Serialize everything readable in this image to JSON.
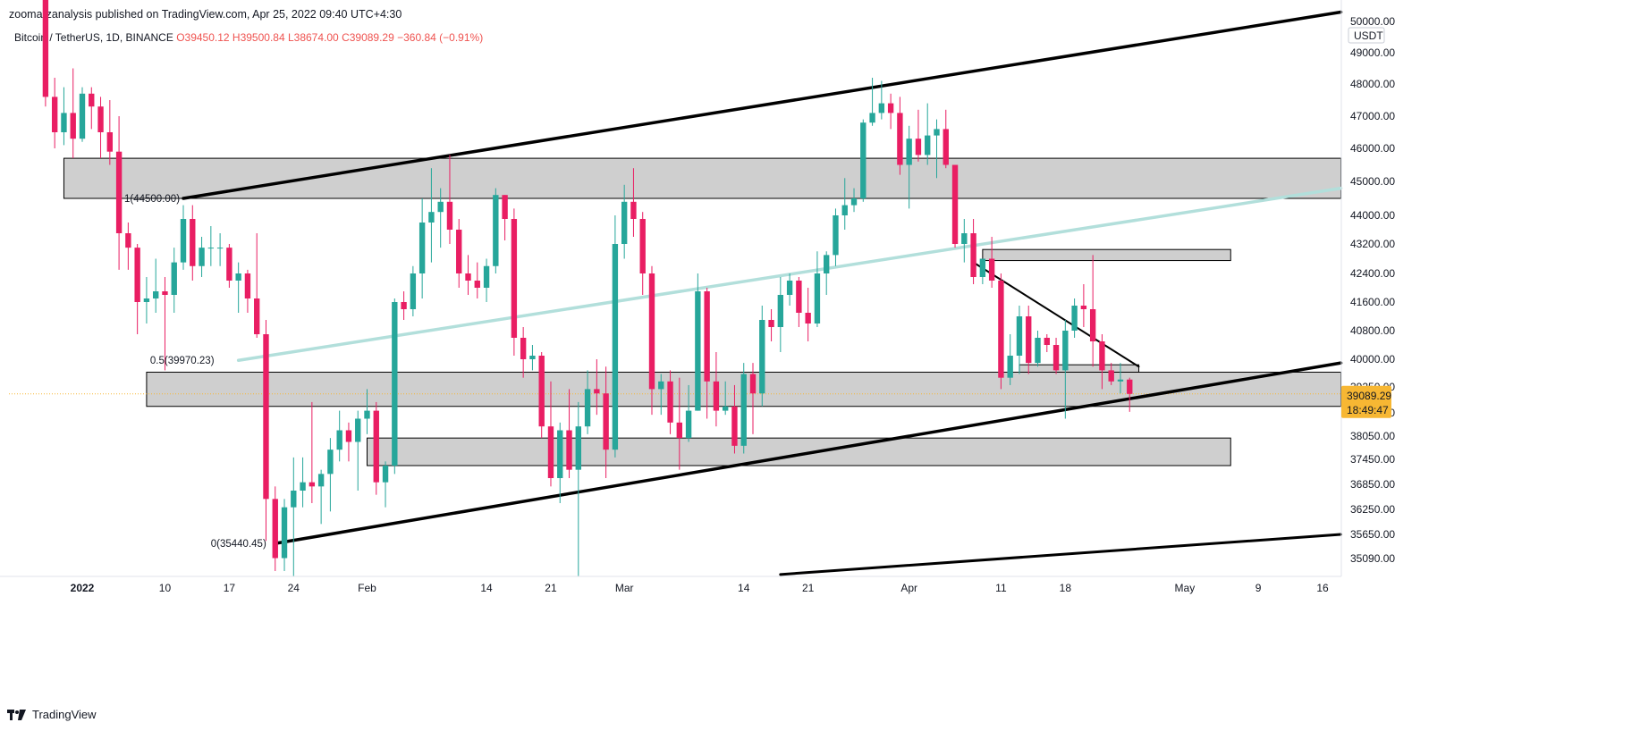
{
  "header": {
    "published_line": "zoomarzanalysis published on TradingView.com, Apr 25, 2022 09:40 UTC+4:30",
    "symbol_line": "Bitcoin / TetherUS, 1D, BINANCE",
    "ohlc": {
      "open": "O39450.12",
      "high": "H39500.84",
      "low": "L38674.00",
      "close": "C39089.29",
      "change": "−360.84 (−0.91%)"
    }
  },
  "footer": {
    "brand": "TradingView"
  },
  "colors": {
    "up": "#26a69a",
    "down": "#e91e63",
    "zone_fill": "#cfcfcf",
    "trend": "#000000",
    "fib": "#b2dfdb",
    "price_tag": "#f7b733"
  },
  "chart_data": {
    "type": "candlestick",
    "title": "Bitcoin / TetherUS, 1D, BINANCE",
    "currency": "USDT",
    "ylim": [
      34700,
      50000
    ],
    "y_ticks": [
      49000,
      48000,
      47000,
      46000,
      45000,
      44000,
      43200,
      42400,
      41600,
      40800,
      40000,
      39250,
      38650,
      38050,
      37450,
      36850,
      36250,
      35650,
      35090
    ],
    "y_tick_labels": [
      "49000.00",
      "48000.00",
      "47000.00",
      "46000.00",
      "45000.00",
      "44000.00",
      "43200.00",
      "42400.00",
      "41600.00",
      "40800.00",
      "40000.00",
      "39250.00",
      "38650.00",
      "38050.00",
      "37450.00",
      "36850.00",
      "36250.00",
      "35650.00",
      "35090.00"
    ],
    "top_tick_label": "50000.00",
    "x_range": [
      "2021-12-27",
      "2022-05-18"
    ],
    "x_ticks": [
      {
        "date": "2022-01-01",
        "label": "2022",
        "bold": true
      },
      {
        "date": "2022-01-10",
        "label": "10"
      },
      {
        "date": "2022-01-17",
        "label": "17"
      },
      {
        "date": "2022-01-24",
        "label": "24"
      },
      {
        "date": "2022-02-01",
        "label": "Feb"
      },
      {
        "date": "2022-02-14",
        "label": "14"
      },
      {
        "date": "2022-02-21",
        "label": "21"
      },
      {
        "date": "2022-03-01",
        "label": "Mar"
      },
      {
        "date": "2022-03-14",
        "label": "14"
      },
      {
        "date": "2022-03-21",
        "label": "21"
      },
      {
        "date": "2022-04-01",
        "label": "Apr"
      },
      {
        "date": "2022-04-11",
        "label": "11"
      },
      {
        "date": "2022-04-18",
        "label": "18"
      },
      {
        "date": "2022-05-01",
        "label": "May"
      },
      {
        "date": "2022-05-09",
        "label": "9"
      },
      {
        "date": "2022-05-16",
        "label": "16"
      }
    ],
    "last_price": {
      "value": 39089.29,
      "label": "39089.29",
      "countdown": "18:49:47"
    },
    "candles": [
      {
        "d": "2021-12-28",
        "o": 50800,
        "h": 51000,
        "l": 47300,
        "c": 47600
      },
      {
        "d": "2021-12-29",
        "o": 47600,
        "h": 48200,
        "l": 46000,
        "c": 46500
      },
      {
        "d": "2021-12-30",
        "o": 46500,
        "h": 47900,
        "l": 46100,
        "c": 47100
      },
      {
        "d": "2021-12-31",
        "o": 47100,
        "h": 48500,
        "l": 45700,
        "c": 46300
      },
      {
        "d": "2022-01-01",
        "o": 46300,
        "h": 47900,
        "l": 46200,
        "c": 47700
      },
      {
        "d": "2022-01-02",
        "o": 47700,
        "h": 47900,
        "l": 46600,
        "c": 47300
      },
      {
        "d": "2022-01-03",
        "o": 47300,
        "h": 47600,
        "l": 45700,
        "c": 46500
      },
      {
        "d": "2022-01-04",
        "o": 46500,
        "h": 47500,
        "l": 45500,
        "c": 45900
      },
      {
        "d": "2022-01-05",
        "o": 45900,
        "h": 47000,
        "l": 42500,
        "c": 43500
      },
      {
        "d": "2022-01-06",
        "o": 43500,
        "h": 43800,
        "l": 42500,
        "c": 43100
      },
      {
        "d": "2022-01-07",
        "o": 43100,
        "h": 43200,
        "l": 40700,
        "c": 41600
      },
      {
        "d": "2022-01-08",
        "o": 41600,
        "h": 42300,
        "l": 41000,
        "c": 41700
      },
      {
        "d": "2022-01-09",
        "o": 41700,
        "h": 42800,
        "l": 41300,
        "c": 41900
      },
      {
        "d": "2022-01-10",
        "o": 41900,
        "h": 42300,
        "l": 39700,
        "c": 41800
      },
      {
        "d": "2022-01-11",
        "o": 41800,
        "h": 43100,
        "l": 41300,
        "c": 42700
      },
      {
        "d": "2022-01-12",
        "o": 42700,
        "h": 44300,
        "l": 42500,
        "c": 43900
      },
      {
        "d": "2022-01-13",
        "o": 43900,
        "h": 44300,
        "l": 42200,
        "c": 42600
      },
      {
        "d": "2022-01-14",
        "o": 42600,
        "h": 43400,
        "l": 42300,
        "c": 43100
      },
      {
        "d": "2022-01-15",
        "o": 43100,
        "h": 43700,
        "l": 42600,
        "c": 43100
      },
      {
        "d": "2022-01-16",
        "o": 43100,
        "h": 43500,
        "l": 42600,
        "c": 43100
      },
      {
        "d": "2022-01-17",
        "o": 43100,
        "h": 43200,
        "l": 42000,
        "c": 42200
      },
      {
        "d": "2022-01-18",
        "o": 42200,
        "h": 42700,
        "l": 41300,
        "c": 42400
      },
      {
        "d": "2022-01-19",
        "o": 42400,
        "h": 42500,
        "l": 41300,
        "c": 41700
      },
      {
        "d": "2022-01-20",
        "o": 41700,
        "h": 43500,
        "l": 40600,
        "c": 40700
      },
      {
        "d": "2022-01-21",
        "o": 40700,
        "h": 41100,
        "l": 35500,
        "c": 36500
      },
      {
        "d": "2022-01-22",
        "o": 36500,
        "h": 36800,
        "l": 34800,
        "c": 35100
      },
      {
        "d": "2022-01-23",
        "o": 35100,
        "h": 36500,
        "l": 34800,
        "c": 36300
      },
      {
        "d": "2022-01-24",
        "o": 36300,
        "h": 37500,
        "l": 33000,
        "c": 36700
      },
      {
        "d": "2022-01-25",
        "o": 36700,
        "h": 37500,
        "l": 36300,
        "c": 36900
      },
      {
        "d": "2022-01-26",
        "o": 36900,
        "h": 38900,
        "l": 36400,
        "c": 36800
      },
      {
        "d": "2022-01-27",
        "o": 36800,
        "h": 37200,
        "l": 35900,
        "c": 37100
      },
      {
        "d": "2022-01-28",
        "o": 37100,
        "h": 38000,
        "l": 36200,
        "c": 37700
      },
      {
        "d": "2022-01-29",
        "o": 37700,
        "h": 38700,
        "l": 37400,
        "c": 38200
      },
      {
        "d": "2022-01-30",
        "o": 38200,
        "h": 38400,
        "l": 37400,
        "c": 37900
      },
      {
        "d": "2022-01-31",
        "o": 37900,
        "h": 38700,
        "l": 36700,
        "c": 38500
      },
      {
        "d": "2022-02-01",
        "o": 38500,
        "h": 39200,
        "l": 38100,
        "c": 38700
      },
      {
        "d": "2022-02-02",
        "o": 38700,
        "h": 38900,
        "l": 36600,
        "c": 36900
      },
      {
        "d": "2022-02-03",
        "o": 36900,
        "h": 37400,
        "l": 36300,
        "c": 37300
      },
      {
        "d": "2022-02-04",
        "o": 37300,
        "h": 41700,
        "l": 37100,
        "c": 41600
      },
      {
        "d": "2022-02-05",
        "o": 41600,
        "h": 41900,
        "l": 41100,
        "c": 41400
      },
      {
        "d": "2022-02-06",
        "o": 41400,
        "h": 42600,
        "l": 41200,
        "c": 42400
      },
      {
        "d": "2022-02-07",
        "o": 42400,
        "h": 44500,
        "l": 41700,
        "c": 43800
      },
      {
        "d": "2022-02-08",
        "o": 43800,
        "h": 45400,
        "l": 42700,
        "c": 44100
      },
      {
        "d": "2022-02-09",
        "o": 44100,
        "h": 44800,
        "l": 43100,
        "c": 44400
      },
      {
        "d": "2022-02-10",
        "o": 44400,
        "h": 45800,
        "l": 43200,
        "c": 43600
      },
      {
        "d": "2022-02-11",
        "o": 43600,
        "h": 43900,
        "l": 42000,
        "c": 42400
      },
      {
        "d": "2022-02-12",
        "o": 42400,
        "h": 42900,
        "l": 41800,
        "c": 42200
      },
      {
        "d": "2022-02-13",
        "o": 42200,
        "h": 42700,
        "l": 41700,
        "c": 42000
      },
      {
        "d": "2022-02-14",
        "o": 42000,
        "h": 42800,
        "l": 41600,
        "c": 42600
      },
      {
        "d": "2022-02-15",
        "o": 42600,
        "h": 44800,
        "l": 42400,
        "c": 44600
      },
      {
        "d": "2022-02-16",
        "o": 44600,
        "h": 44600,
        "l": 43300,
        "c": 43900
      },
      {
        "d": "2022-02-17",
        "o": 43900,
        "h": 44200,
        "l": 40100,
        "c": 40600
      },
      {
        "d": "2022-02-18",
        "o": 40600,
        "h": 40900,
        "l": 39500,
        "c": 40000
      },
      {
        "d": "2022-02-19",
        "o": 40000,
        "h": 40400,
        "l": 39700,
        "c": 40100
      },
      {
        "d": "2022-02-20",
        "o": 40100,
        "h": 40200,
        "l": 38000,
        "c": 38300
      },
      {
        "d": "2022-02-21",
        "o": 38300,
        "h": 39400,
        "l": 36800,
        "c": 37000
      },
      {
        "d": "2022-02-22",
        "o": 37000,
        "h": 38400,
        "l": 36400,
        "c": 38200
      },
      {
        "d": "2022-02-23",
        "o": 38200,
        "h": 39200,
        "l": 37000,
        "c": 37200
      },
      {
        "d": "2022-02-24",
        "o": 37200,
        "h": 38900,
        "l": 34400,
        "c": 38300
      },
      {
        "d": "2022-02-25",
        "o": 38300,
        "h": 39700,
        "l": 38100,
        "c": 39200
      },
      {
        "d": "2022-02-26",
        "o": 39200,
        "h": 40000,
        "l": 38600,
        "c": 39100
      },
      {
        "d": "2022-02-27",
        "o": 39100,
        "h": 39800,
        "l": 37000,
        "c": 37700
      },
      {
        "d": "2022-02-28",
        "o": 37700,
        "h": 44000,
        "l": 37500,
        "c": 43200
      },
      {
        "d": "2022-03-01",
        "o": 43200,
        "h": 44900,
        "l": 42800,
        "c": 44400
      },
      {
        "d": "2022-03-02",
        "o": 44400,
        "h": 45400,
        "l": 43400,
        "c": 43900
      },
      {
        "d": "2022-03-03",
        "o": 43900,
        "h": 44100,
        "l": 41800,
        "c": 42400
      },
      {
        "d": "2022-03-04",
        "o": 42400,
        "h": 42600,
        "l": 38600,
        "c": 39200
      },
      {
        "d": "2022-03-05",
        "o": 39200,
        "h": 39600,
        "l": 38600,
        "c": 39400
      },
      {
        "d": "2022-03-06",
        "o": 39400,
        "h": 39700,
        "l": 38100,
        "c": 38400
      },
      {
        "d": "2022-03-07",
        "o": 38400,
        "h": 39500,
        "l": 37200,
        "c": 38000
      },
      {
        "d": "2022-03-08",
        "o": 38000,
        "h": 39300,
        "l": 37900,
        "c": 38700
      },
      {
        "d": "2022-03-09",
        "o": 38700,
        "h": 42400,
        "l": 38700,
        "c": 41900
      },
      {
        "d": "2022-03-10",
        "o": 41900,
        "h": 42000,
        "l": 38500,
        "c": 39400
      },
      {
        "d": "2022-03-11",
        "o": 39400,
        "h": 40200,
        "l": 38300,
        "c": 38700
      },
      {
        "d": "2022-03-12",
        "o": 38700,
        "h": 39400,
        "l": 38600,
        "c": 38800
      },
      {
        "d": "2022-03-13",
        "o": 38800,
        "h": 39300,
        "l": 37600,
        "c": 37800
      },
      {
        "d": "2022-03-14",
        "o": 37800,
        "h": 39900,
        "l": 37600,
        "c": 39600
      },
      {
        "d": "2022-03-15",
        "o": 39600,
        "h": 39900,
        "l": 38100,
        "c": 39100
      },
      {
        "d": "2022-03-16",
        "o": 39100,
        "h": 41500,
        "l": 38800,
        "c": 41100
      },
      {
        "d": "2022-03-17",
        "o": 41100,
        "h": 41400,
        "l": 40500,
        "c": 40900
      },
      {
        "d": "2022-03-18",
        "o": 40900,
        "h": 42300,
        "l": 40200,
        "c": 41800
      },
      {
        "d": "2022-03-19",
        "o": 41800,
        "h": 42400,
        "l": 41500,
        "c": 42200
      },
      {
        "d": "2022-03-20",
        "o": 42200,
        "h": 42300,
        "l": 40900,
        "c": 41300
      },
      {
        "d": "2022-03-21",
        "o": 41300,
        "h": 42000,
        "l": 40500,
        "c": 41000
      },
      {
        "d": "2022-03-22",
        "o": 41000,
        "h": 43000,
        "l": 40900,
        "c": 42400
      },
      {
        "d": "2022-03-23",
        "o": 42400,
        "h": 43000,
        "l": 41800,
        "c": 42900
      },
      {
        "d": "2022-03-24",
        "o": 42900,
        "h": 44200,
        "l": 42600,
        "c": 44000
      },
      {
        "d": "2022-03-25",
        "o": 44000,
        "h": 45100,
        "l": 43600,
        "c": 44300
      },
      {
        "d": "2022-03-26",
        "o": 44300,
        "h": 44800,
        "l": 44100,
        "c": 44500
      },
      {
        "d": "2022-03-27",
        "o": 44500,
        "h": 46900,
        "l": 44400,
        "c": 46800
      },
      {
        "d": "2022-03-28",
        "o": 46800,
        "h": 48200,
        "l": 46700,
        "c": 47100
      },
      {
        "d": "2022-03-29",
        "o": 47100,
        "h": 48100,
        "l": 46900,
        "c": 47400
      },
      {
        "d": "2022-03-30",
        "o": 47400,
        "h": 47700,
        "l": 46600,
        "c": 47100
      },
      {
        "d": "2022-03-31",
        "o": 47100,
        "h": 47600,
        "l": 45200,
        "c": 45500
      },
      {
        "d": "2022-04-01",
        "o": 45500,
        "h": 46700,
        "l": 44200,
        "c": 46300
      },
      {
        "d": "2022-04-02",
        "o": 46300,
        "h": 47200,
        "l": 45600,
        "c": 45800
      },
      {
        "d": "2022-04-03",
        "o": 45800,
        "h": 47400,
        "l": 45500,
        "c": 46400
      },
      {
        "d": "2022-04-04",
        "o": 46400,
        "h": 46900,
        "l": 45100,
        "c": 46600
      },
      {
        "d": "2022-04-05",
        "o": 46600,
        "h": 47200,
        "l": 45400,
        "c": 45500
      },
      {
        "d": "2022-04-06",
        "o": 45500,
        "h": 45500,
        "l": 43100,
        "c": 43200
      },
      {
        "d": "2022-04-07",
        "o": 43200,
        "h": 43900,
        "l": 42700,
        "c": 43500
      },
      {
        "d": "2022-04-08",
        "o": 43500,
        "h": 43900,
        "l": 42100,
        "c": 42300
      },
      {
        "d": "2022-04-09",
        "o": 42300,
        "h": 42800,
        "l": 42100,
        "c": 42800
      },
      {
        "d": "2022-04-10",
        "o": 42800,
        "h": 43400,
        "l": 42000,
        "c": 42200
      },
      {
        "d": "2022-04-11",
        "o": 42200,
        "h": 42400,
        "l": 39200,
        "c": 39500
      },
      {
        "d": "2022-04-12",
        "o": 39500,
        "h": 40700,
        "l": 39300,
        "c": 40100
      },
      {
        "d": "2022-04-13",
        "o": 40100,
        "h": 41500,
        "l": 39600,
        "c": 41200
      },
      {
        "d": "2022-04-14",
        "o": 41200,
        "h": 41500,
        "l": 39600,
        "c": 39900
      },
      {
        "d": "2022-04-15",
        "o": 39900,
        "h": 40800,
        "l": 39800,
        "c": 40600
      },
      {
        "d": "2022-04-16",
        "o": 40600,
        "h": 40700,
        "l": 40200,
        "c": 40400
      },
      {
        "d": "2022-04-17",
        "o": 40400,
        "h": 40600,
        "l": 39600,
        "c": 39700
      },
      {
        "d": "2022-04-18",
        "o": 39700,
        "h": 41100,
        "l": 38500,
        "c": 40800
      },
      {
        "d": "2022-04-19",
        "o": 40800,
        "h": 41700,
        "l": 40600,
        "c": 41500
      },
      {
        "d": "2022-04-20",
        "o": 41500,
        "h": 42100,
        "l": 40900,
        "c": 41400
      },
      {
        "d": "2022-04-21",
        "o": 41400,
        "h": 42900,
        "l": 39800,
        "c": 40500
      },
      {
        "d": "2022-04-22",
        "o": 40500,
        "h": 40700,
        "l": 39200,
        "c": 39700
      },
      {
        "d": "2022-04-23",
        "o": 39700,
        "h": 39900,
        "l": 39300,
        "c": 39400
      },
      {
        "d": "2022-04-24",
        "o": 39400,
        "h": 39900,
        "l": 39100,
        "c": 39450
      },
      {
        "d": "2022-04-25",
        "o": 39450.12,
        "h": 39500.84,
        "l": 38674.0,
        "c": 39089.29
      }
    ],
    "annotations": {
      "fib_level_1_label": "1(44500.00)",
      "fib_level_05_label": "0.5(39970.23)",
      "fib_level_0_label": "0(35440.45)"
    }
  }
}
